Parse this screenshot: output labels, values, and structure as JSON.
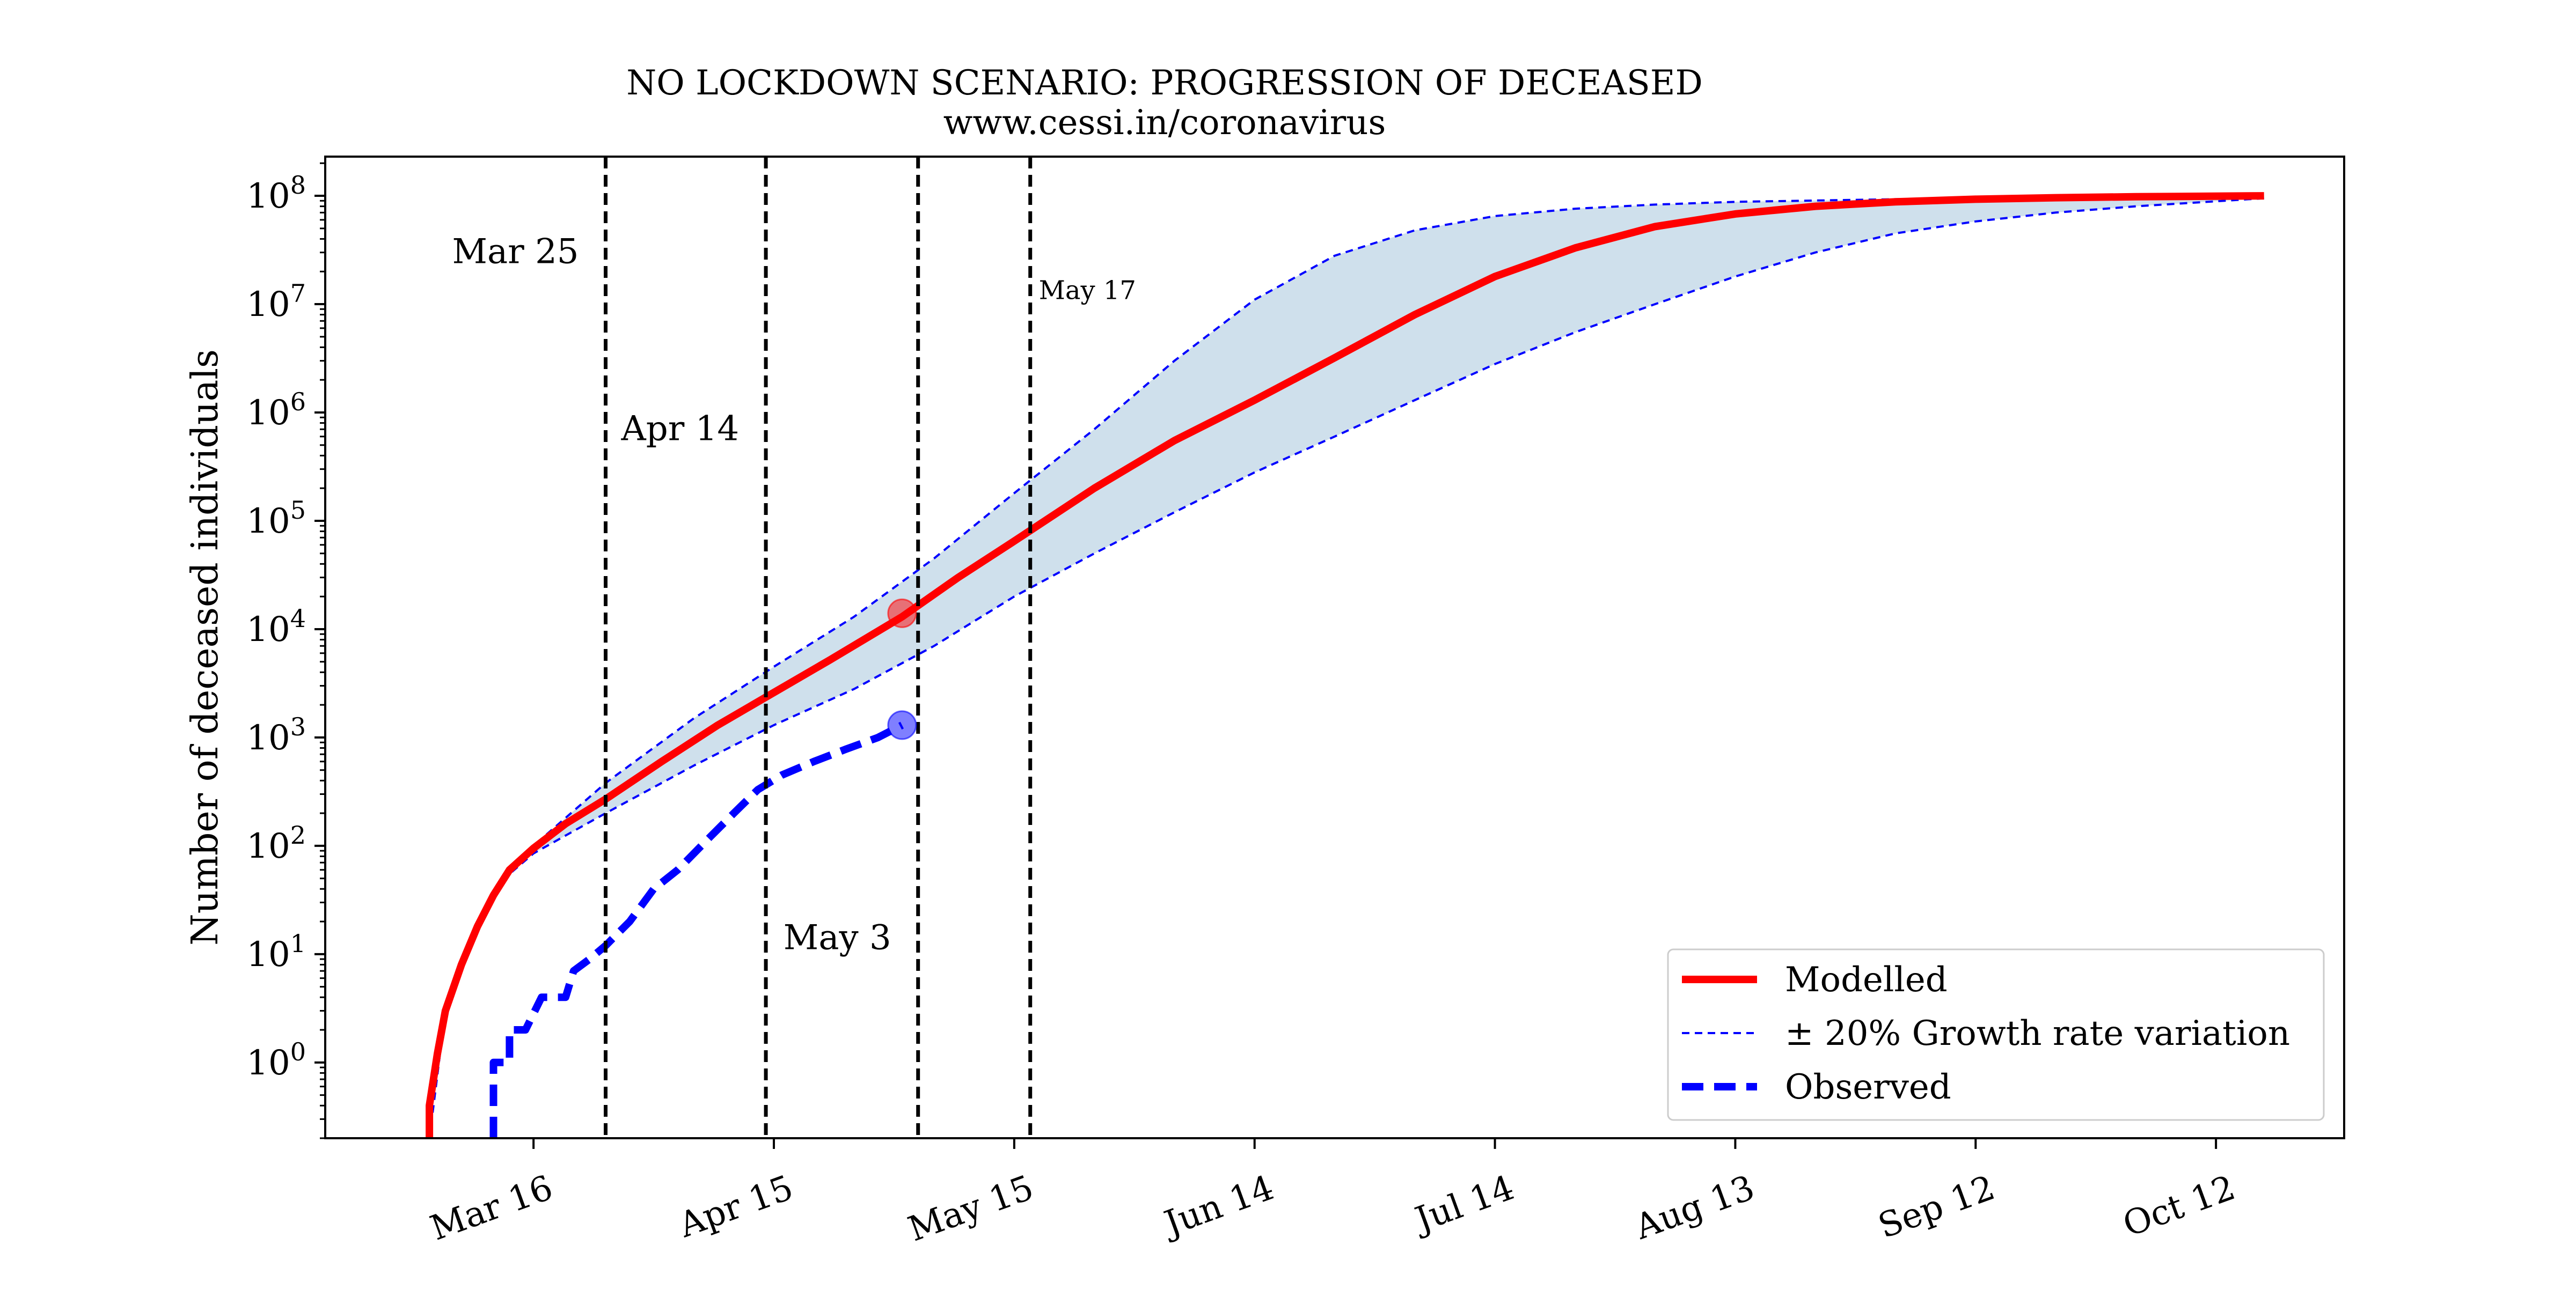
{
  "chart_data": {
    "type": "line",
    "title": "NO LOCKDOWN SCENARIO: PROGRESSION OF DECEASED",
    "subtitle": "www.cessi.in/coronavirus",
    "xlabel": "",
    "ylabel": "Number of deceased individuals",
    "x_ticks": [
      {
        "date": "2020-03-16",
        "label": "Mar 16"
      },
      {
        "date": "2020-04-15",
        "label": "Apr 15"
      },
      {
        "date": "2020-05-15",
        "label": "May 15"
      },
      {
        "date": "2020-06-14",
        "label": "Jun 14"
      },
      {
        "date": "2020-07-14",
        "label": "Jul 14"
      },
      {
        "date": "2020-08-13",
        "label": "Aug 13"
      },
      {
        "date": "2020-09-12",
        "label": "Sep 12"
      },
      {
        "date": "2020-10-12",
        "label": "Oct 12"
      }
    ],
    "xlim": [
      "2020-02-19",
      "2020-10-28"
    ],
    "y_scale": "log",
    "y_ticks": [
      {
        "value": 1,
        "base": "10",
        "exp": "0"
      },
      {
        "value": 10,
        "base": "10",
        "exp": "1"
      },
      {
        "value": 100,
        "base": "10",
        "exp": "2"
      },
      {
        "value": 1000,
        "base": "10",
        "exp": "3"
      },
      {
        "value": 10000,
        "base": "10",
        "exp": "4"
      },
      {
        "value": 100000,
        "base": "10",
        "exp": "5"
      },
      {
        "value": 1000000,
        "base": "10",
        "exp": "6"
      },
      {
        "value": 10000000,
        "base": "10",
        "exp": "7"
      },
      {
        "value": 100000000,
        "base": "10",
        "exp": "8"
      }
    ],
    "ylim": [
      0.2,
      230000000
    ],
    "grid": false,
    "legend_position": "lower-right",
    "vertical_lines": [
      {
        "date": "2020-03-25",
        "label": "Mar 25",
        "label_y": 30000000,
        "label_side": "left",
        "small": false
      },
      {
        "date": "2020-04-14",
        "label": "Apr 14",
        "label_y": 700000,
        "label_side": "left",
        "small": false
      },
      {
        "date": "2020-05-03",
        "label": "May 3",
        "label_y": 14,
        "label_side": "left",
        "small": false
      },
      {
        "date": "2020-05-17",
        "label": "May 17",
        "label_y": 14000000,
        "label_side": "left",
        "small": true
      }
    ],
    "series": [
      {
        "name": "Modelled",
        "color": "#ff0000",
        "style": "solid",
        "points": [
          [
            "2020-03-03",
            0.2
          ],
          [
            "2020-03-03",
            0.4
          ],
          [
            "2020-03-04",
            1.2
          ],
          [
            "2020-03-05",
            3
          ],
          [
            "2020-03-07",
            8
          ],
          [
            "2020-03-09",
            18
          ],
          [
            "2020-03-11",
            35
          ],
          [
            "2020-03-13",
            60
          ],
          [
            "2020-03-16",
            95
          ],
          [
            "2020-03-20",
            160
          ],
          [
            "2020-03-25",
            270
          ],
          [
            "2020-04-01",
            600
          ],
          [
            "2020-04-08",
            1300
          ],
          [
            "2020-04-15",
            2600
          ],
          [
            "2020-04-22",
            5200
          ],
          [
            "2020-05-01",
            13000
          ],
          [
            "2020-05-08",
            30000
          ],
          [
            "2020-05-15",
            65000
          ],
          [
            "2020-05-25",
            200000
          ],
          [
            "2020-06-04",
            550000
          ],
          [
            "2020-06-14",
            1300000
          ],
          [
            "2020-06-24",
            3200000
          ],
          [
            "2020-07-04",
            8000000
          ],
          [
            "2020-07-14",
            18000000
          ],
          [
            "2020-07-24",
            33000000
          ],
          [
            "2020-08-03",
            52000000
          ],
          [
            "2020-08-13",
            68000000
          ],
          [
            "2020-08-23",
            80000000
          ],
          [
            "2020-09-02",
            88000000
          ],
          [
            "2020-09-12",
            93000000
          ],
          [
            "2020-09-22",
            96000000
          ],
          [
            "2020-10-02",
            98000000
          ],
          [
            "2020-10-18",
            100000000
          ]
        ]
      },
      {
        "name": "± 20% Growth rate variation",
        "color": "#0000ff",
        "style": "dashed-thin",
        "band_fill": "#cfe0ec",
        "upper": [
          [
            "2020-03-03",
            0.2
          ],
          [
            "2020-03-05",
            3
          ],
          [
            "2020-03-09",
            18
          ],
          [
            "2020-03-13",
            60
          ],
          [
            "2020-03-16",
            100
          ],
          [
            "2020-03-25",
            380
          ],
          [
            "2020-04-05",
            1500
          ],
          [
            "2020-04-15",
            4500
          ],
          [
            "2020-04-25",
            13000
          ],
          [
            "2020-05-05",
            45000
          ],
          [
            "2020-05-15",
            180000
          ],
          [
            "2020-05-25",
            700000
          ],
          [
            "2020-06-04",
            3000000
          ],
          [
            "2020-06-14",
            11000000
          ],
          [
            "2020-06-24",
            28000000
          ],
          [
            "2020-07-04",
            48000000
          ],
          [
            "2020-07-14",
            65000000
          ],
          [
            "2020-07-24",
            76000000
          ],
          [
            "2020-08-03",
            83000000
          ],
          [
            "2020-08-13",
            88000000
          ],
          [
            "2020-09-02",
            93000000
          ],
          [
            "2020-09-22",
            97000000
          ],
          [
            "2020-10-18",
            100000000
          ]
        ],
        "lower": [
          [
            "2020-03-03",
            0.2
          ],
          [
            "2020-03-05",
            3
          ],
          [
            "2020-03-09",
            18
          ],
          [
            "2020-03-13",
            55
          ],
          [
            "2020-03-16",
            85
          ],
          [
            "2020-03-25",
            200
          ],
          [
            "2020-04-05",
            550
          ],
          [
            "2020-04-15",
            1300
          ],
          [
            "2020-04-25",
            2800
          ],
          [
            "2020-05-05",
            7000
          ],
          [
            "2020-05-15",
            20000
          ],
          [
            "2020-05-25",
            50000
          ],
          [
            "2020-06-04",
            120000
          ],
          [
            "2020-06-14",
            280000
          ],
          [
            "2020-06-24",
            600000
          ],
          [
            "2020-07-04",
            1300000
          ],
          [
            "2020-07-14",
            2800000
          ],
          [
            "2020-07-24",
            5500000
          ],
          [
            "2020-08-03",
            10000000
          ],
          [
            "2020-08-13",
            18000000
          ],
          [
            "2020-08-23",
            30000000
          ],
          [
            "2020-09-02",
            45000000
          ],
          [
            "2020-09-12",
            58000000
          ],
          [
            "2020-09-22",
            70000000
          ],
          [
            "2020-10-02",
            80000000
          ],
          [
            "2020-10-18",
            95000000
          ]
        ]
      },
      {
        "name": "Observed",
        "color": "#0000ff",
        "style": "dashed-thick",
        "points": [
          [
            "2020-03-11",
            0.2
          ],
          [
            "2020-03-11",
            1
          ],
          [
            "2020-03-13",
            1
          ],
          [
            "2020-03-13",
            2
          ],
          [
            "2020-03-15",
            2
          ],
          [
            "2020-03-17",
            4
          ],
          [
            "2020-03-20",
            4
          ],
          [
            "2020-03-21",
            7
          ],
          [
            "2020-03-23",
            9
          ],
          [
            "2020-03-25",
            12
          ],
          [
            "2020-03-28",
            20
          ],
          [
            "2020-03-31",
            40
          ],
          [
            "2020-04-03",
            60
          ],
          [
            "2020-04-07",
            120
          ],
          [
            "2020-04-10",
            200
          ],
          [
            "2020-04-13",
            330
          ],
          [
            "2020-04-16",
            450
          ],
          [
            "2020-04-20",
            600
          ],
          [
            "2020-04-24",
            780
          ],
          [
            "2020-04-28",
            1000
          ],
          [
            "2020-05-01",
            1300
          ]
        ]
      }
    ],
    "markers": [
      {
        "series": "Modelled",
        "date": "2020-05-01",
        "value": 14000,
        "color": "#ff0000"
      },
      {
        "series": "Observed",
        "date": "2020-05-01",
        "value": 1300,
        "color": "#0000ff"
      }
    ]
  }
}
